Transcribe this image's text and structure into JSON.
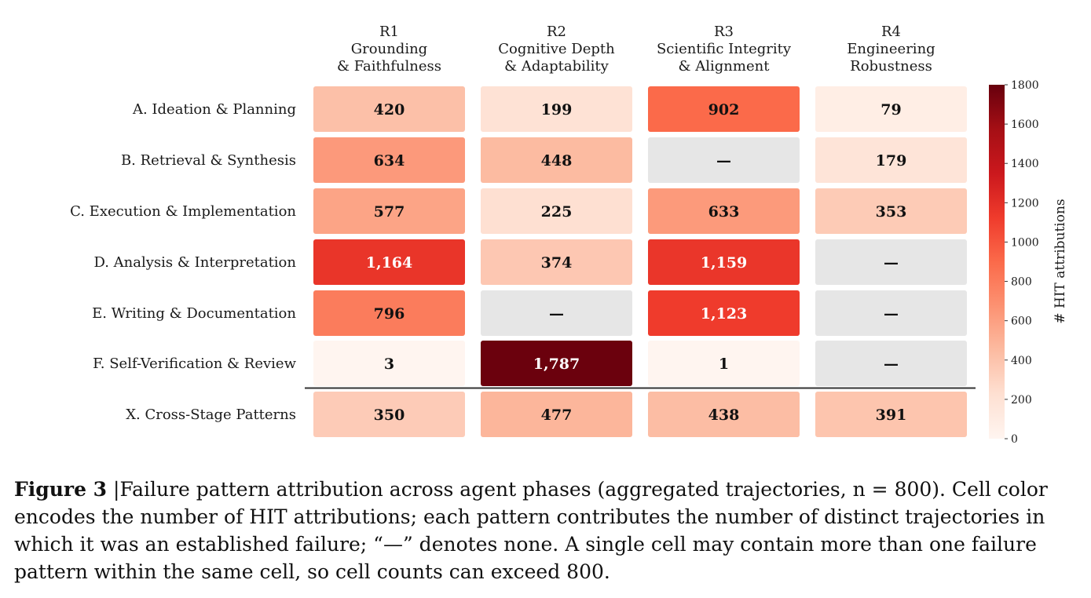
{
  "chart_data": {
    "type": "heatmap",
    "columns": [
      [
        "R1",
        "Grounding",
        "& Faithfulness"
      ],
      [
        "R2",
        "Cognitive Depth",
        "& Adaptability"
      ],
      [
        "R3",
        "Scientific Integrity",
        "& Alignment"
      ],
      [
        "R4",
        "Engineering",
        "Robustness"
      ]
    ],
    "rows": [
      "A. Ideation & Planning",
      "B. Retrieval & Synthesis",
      "C. Execution & Implementation",
      "D. Analysis & Interpretation",
      "E. Writing & Documentation",
      "F. Self-Verification & Review",
      "X. Cross-Stage Patterns"
    ],
    "values": [
      [
        420,
        199,
        902,
        79
      ],
      [
        634,
        448,
        null,
        179
      ],
      [
        577,
        225,
        633,
        353
      ],
      [
        1164,
        374,
        1159,
        null
      ],
      [
        796,
        null,
        1123,
        null
      ],
      [
        3,
        1787,
        1,
        null
      ],
      [
        350,
        477,
        438,
        391
      ]
    ],
    "cell_labels": [
      [
        "420",
        "199",
        "902",
        "79"
      ],
      [
        "634",
        "448",
        "—",
        "179"
      ],
      [
        "577",
        "225",
        "633",
        "353"
      ],
      [
        "1,164",
        "374",
        "1,159",
        "—"
      ],
      [
        "796",
        "—",
        "1,123",
        "—"
      ],
      [
        "3",
        "1,787",
        "1",
        "—"
      ],
      [
        "350",
        "477",
        "438",
        "391"
      ]
    ],
    "colorbar": {
      "label": "# HIT attributions",
      "range": [
        0,
        1800
      ],
      "ticks": [
        "0",
        "200",
        "400",
        "600",
        "800",
        "1000",
        "1200",
        "1400",
        "1600",
        "1800"
      ],
      "colormap": "Reds"
    },
    "none_color": "#e6e6e6",
    "separator_after_row": 6
  },
  "caption": {
    "label": "Figure 3",
    "text": " |Failure pattern attribution across agent phases (aggregated trajectories, n = 800). Cell color encodes the number of HIT attributions; each pattern contributes the number of distinct trajectories in which it was an established failure; “—” denotes none. A single cell may contain more than one failure pattern within the same cell, so cell counts can exceed 800."
  }
}
